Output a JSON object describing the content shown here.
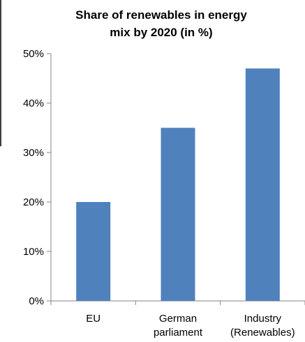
{
  "chart_data": {
    "type": "bar",
    "title": "Share of renewables in energy mix by 2020 (in %)",
    "title_lines": [
      "Share of renewables in energy",
      "mix by 2020 (in %)"
    ],
    "categories": [
      "EU",
      "German parliament",
      "Industry (Renewables)"
    ],
    "category_lines": [
      [
        "EU"
      ],
      [
        "German",
        "parliament"
      ],
      [
        "Industry",
        "(Renewables)"
      ]
    ],
    "values": [
      20,
      35,
      47
    ],
    "ylim": [
      0,
      50
    ],
    "yticks": [
      0,
      10,
      20,
      30,
      40,
      50
    ],
    "ytick_labels": [
      "0%",
      "10%",
      "20%",
      "30%",
      "40%",
      "50%"
    ],
    "xlabel": "",
    "ylabel": "",
    "grid": false,
    "legend": "none",
    "bar_color": "#4f81bd",
    "axis_color": "#868686"
  }
}
